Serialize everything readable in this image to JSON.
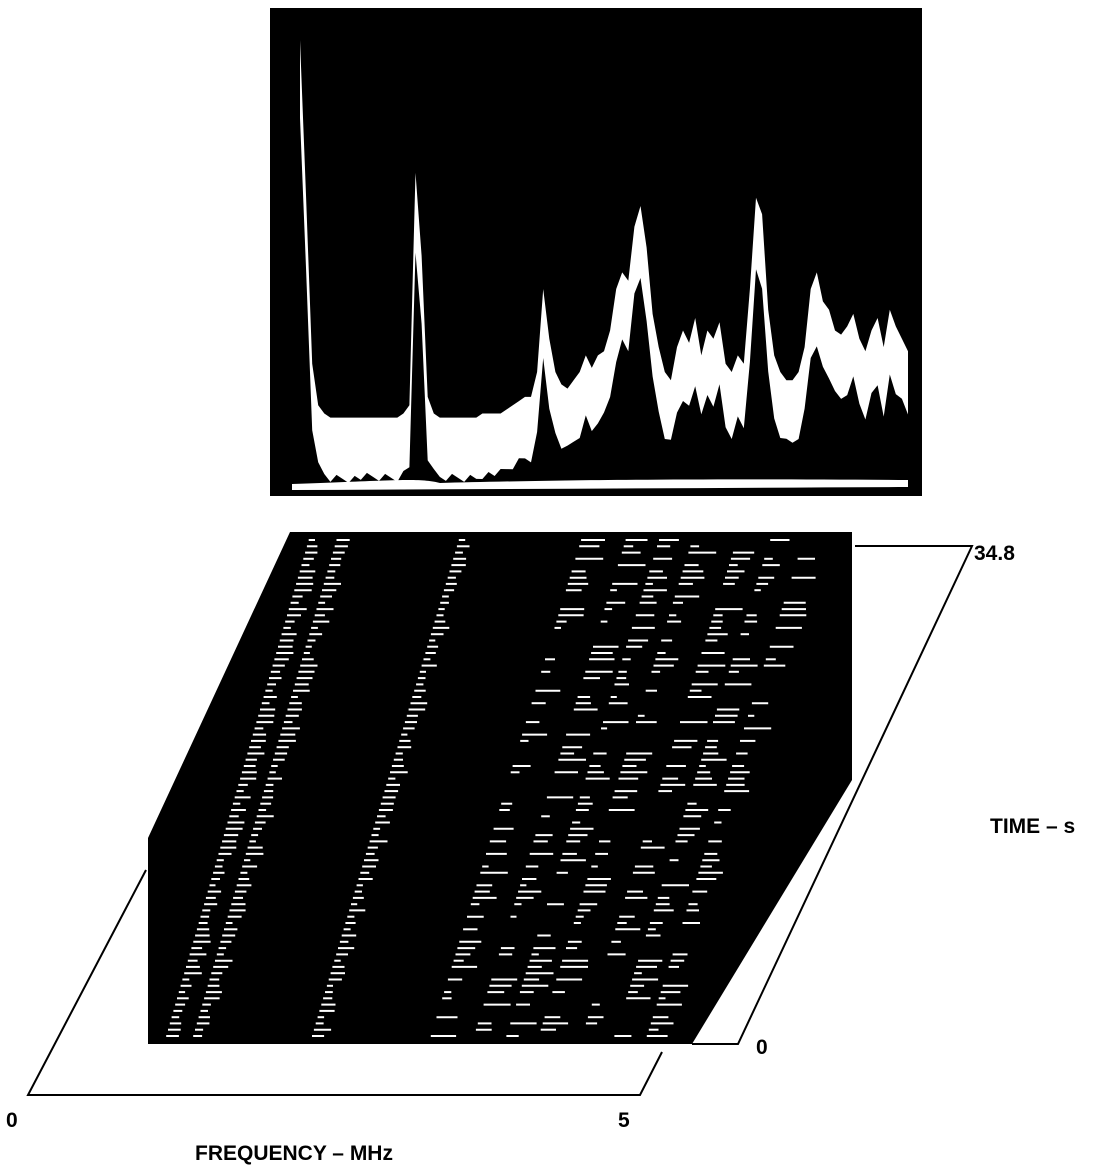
{
  "chart_data": [
    {
      "type": "line",
      "title": "",
      "xlabel": "",
      "ylabel": "",
      "grid": false,
      "legend": "none",
      "x": [
        0.0,
        0.05,
        0.1,
        0.15,
        0.2,
        0.25,
        0.3,
        0.35,
        0.4,
        0.45,
        0.5,
        0.55,
        0.6,
        0.65,
        0.7,
        0.75,
        0.8,
        0.85,
        0.9,
        0.95,
        1.0,
        1.05,
        1.1,
        1.15,
        1.2,
        1.25,
        1.3,
        1.35,
        1.4,
        1.45,
        1.5,
        1.55,
        1.6,
        1.65,
        1.7,
        1.75,
        1.8,
        1.85,
        1.9,
        1.95,
        2.0,
        2.05,
        2.1,
        2.15,
        2.2,
        2.25,
        2.3,
        2.35,
        2.4,
        2.45,
        2.5,
        2.55,
        2.6,
        2.65,
        2.7,
        2.75,
        2.8,
        2.85,
        2.9,
        2.95,
        3.0,
        3.05,
        3.1,
        3.15,
        3.2,
        3.25,
        3.3,
        3.35,
        3.4,
        3.45,
        3.5,
        3.55,
        3.6,
        3.65,
        3.7,
        3.75,
        3.8,
        3.85,
        3.9,
        3.95,
        4.0,
        4.05,
        4.1,
        4.15,
        4.2,
        4.25,
        4.3,
        4.35,
        4.4,
        4.45,
        4.5,
        4.55,
        4.6,
        4.65,
        4.7,
        4.75,
        4.8,
        4.85,
        4.9,
        4.95,
        5.0
      ],
      "series": [
        {
          "values": [
            100,
            62,
            22,
            12,
            10,
            9,
            9,
            9,
            9,
            9,
            9,
            9,
            9,
            9,
            9,
            9,
            9,
            10,
            12,
            68,
            48,
            14,
            10,
            9,
            9,
            9,
            9,
            9,
            9,
            9,
            10,
            10,
            10,
            10,
            11,
            12,
            13,
            14,
            14,
            20,
            40,
            28,
            20,
            17,
            16,
            18,
            20,
            24,
            21,
            24,
            25,
            30,
            40,
            44,
            42,
            55,
            60,
            50,
            34,
            26,
            20,
            18,
            26,
            30,
            27,
            33,
            24,
            30,
            28,
            32,
            22,
            20,
            24,
            22,
            40,
            62,
            58,
            35,
            24,
            20,
            18,
            18,
            20,
            26,
            40,
            44,
            37,
            35,
            30,
            29,
            31,
            34,
            28,
            25,
            30,
            33,
            26,
            35,
            31,
            28,
            25
          ]
        }
      ]
    },
    {
      "type": "heatmap",
      "title": "",
      "xlabel": "FREQUENCY – MHz",
      "ylabel": "TIME – s",
      "x_ticks": [
        "0",
        "5"
      ],
      "y_ticks": [
        "0",
        "34.8"
      ],
      "xlim": [
        0,
        5
      ],
      "ylim": [
        0,
        34.8
      ],
      "grid": false,
      "legend": "none"
    }
  ],
  "colors": {
    "background": "#ffffff",
    "display": "#000000",
    "trace": "#ffffff",
    "axes": "#000000"
  }
}
